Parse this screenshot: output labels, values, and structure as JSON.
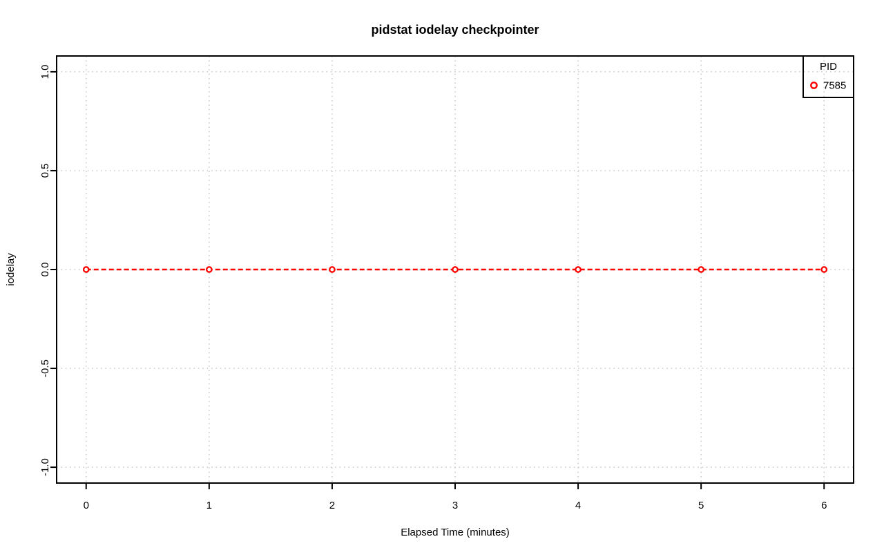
{
  "chart_data": {
    "type": "line",
    "title": "pidstat iodelay checkpointer",
    "xlabel": "Elapsed Time (minutes)",
    "ylabel": "iodelay",
    "x": [
      0,
      1,
      2,
      3,
      4,
      5,
      6
    ],
    "series": [
      {
        "name": "7585",
        "values": [
          0,
          0,
          0,
          0,
          0,
          0,
          0
        ],
        "color": "#ff0000",
        "marker": "open-circle",
        "line_style": "dashed"
      }
    ],
    "xlim": [
      0,
      6
    ],
    "ylim": [
      -1,
      1
    ],
    "axis_pad_frac": 0.04,
    "xticks": {
      "values": [
        0,
        1,
        2,
        3,
        4,
        5,
        6
      ],
      "labels": [
        "0",
        "1",
        "2",
        "3",
        "4",
        "5",
        "6"
      ]
    },
    "yticks": {
      "values": [
        1,
        0.5,
        0,
        -0.5,
        -1
      ],
      "labels": [
        "1.0",
        "0.5",
        "0.0",
        "-0.5",
        "-1.0"
      ]
    },
    "grid": {
      "show": true,
      "style": "dotted",
      "color": "#c8c8c8"
    },
    "axis_color": "#000000",
    "background": "#ffffff",
    "legend": {
      "title": "PID",
      "position": "top-right",
      "entries": [
        {
          "label": "7585",
          "color": "#ff0000",
          "marker": "open-circle"
        }
      ]
    }
  }
}
